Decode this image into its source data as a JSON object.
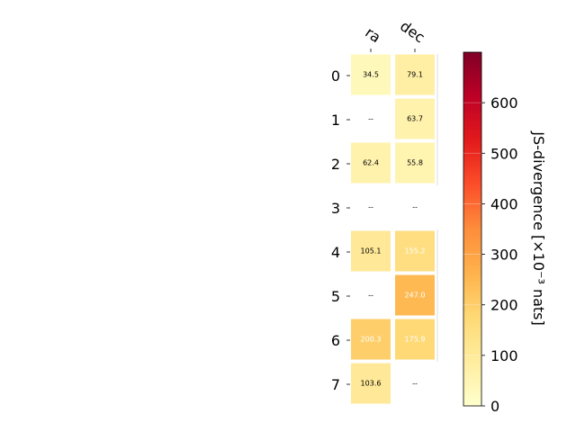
{
  "chart_data": {
    "type": "heatmap",
    "columns": [
      "ra",
      "dec"
    ],
    "rows": [
      "0",
      "1",
      "2",
      "3",
      "4",
      "5",
      "6",
      "7"
    ],
    "values": [
      [
        34.5,
        79.1
      ],
      [
        null,
        63.7
      ],
      [
        62.4,
        55.8
      ],
      [
        null,
        null
      ],
      [
        105.1,
        155.2
      ],
      [
        null,
        247.0
      ],
      [
        200.3,
        175.9
      ],
      [
        103.6,
        null
      ]
    ],
    "labels": [
      [
        "34.5",
        "79.1"
      ],
      [
        "--",
        "63.7"
      ],
      [
        "62.4",
        "55.8"
      ],
      [
        "--",
        "--"
      ],
      [
        "105.1",
        "155.2"
      ],
      [
        "--",
        "247.0"
      ],
      [
        "200.3",
        "175.9"
      ],
      [
        "103.6",
        "--"
      ]
    ],
    "colorbar": {
      "label": "JS-divergence [×10⁻³ nats]",
      "range": [
        0,
        700
      ],
      "ticks": [
        "0",
        "100",
        "200",
        "300",
        "400",
        "500",
        "600"
      ],
      "colormap": "YlOrRd"
    }
  }
}
